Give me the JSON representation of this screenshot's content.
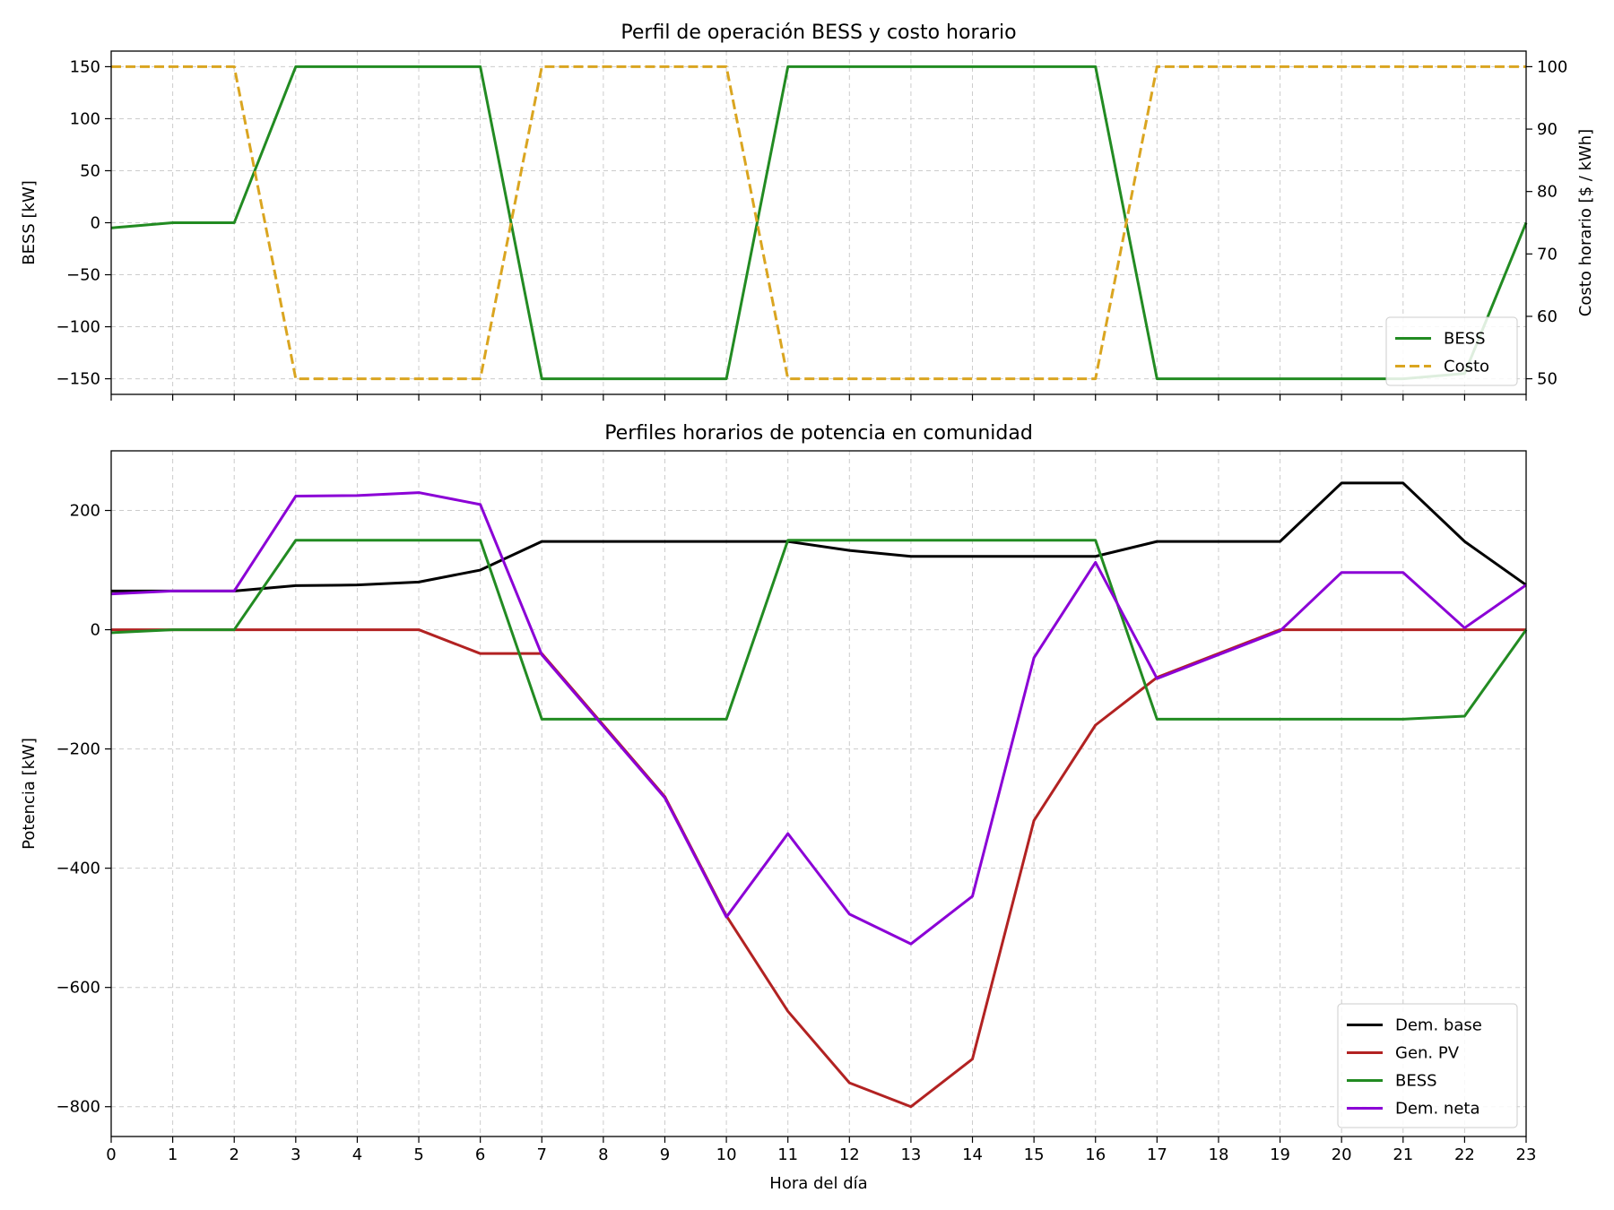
{
  "chart_data": [
    {
      "type": "line",
      "title": "Perfil de operación BESS y costo horario",
      "xlabel": "",
      "ylabel": "BESS [kW]",
      "y2label": "Costo horario [$ / kWh]",
      "x": [
        0,
        1,
        2,
        3,
        4,
        5,
        6,
        7,
        8,
        9,
        10,
        11,
        12,
        13,
        14,
        15,
        16,
        17,
        18,
        19,
        20,
        21,
        22,
        23
      ],
      "xlim": [
        0,
        23
      ],
      "ylim": [
        -165,
        165
      ],
      "yticks": [
        150,
        100,
        50,
        0,
        -50,
        -100,
        -150
      ],
      "y2lim": [
        47.5,
        102.5
      ],
      "y2ticks": [
        100,
        90,
        80,
        70,
        60,
        50
      ],
      "grid": true,
      "legend_position": "lower-right",
      "series": [
        {
          "name": "BESS",
          "axis": "left",
          "color": "#228b22",
          "style": "solid",
          "values": [
            -5,
            0,
            0,
            150,
            150,
            150,
            150,
            -150,
            -150,
            -150,
            -150,
            150,
            150,
            150,
            150,
            150,
            150,
            -150,
            -150,
            -150,
            -150,
            -150,
            -145,
            0
          ]
        },
        {
          "name": "Costo",
          "axis": "right",
          "color": "#daa520",
          "style": "dashed",
          "values": [
            100,
            100,
            100,
            50,
            50,
            50,
            50,
            100,
            100,
            100,
            100,
            50,
            50,
            50,
            50,
            50,
            50,
            100,
            100,
            100,
            100,
            100,
            100,
            100
          ]
        }
      ]
    },
    {
      "type": "line",
      "title": "Perfiles horarios de potencia en comunidad",
      "xlabel": "Hora del día",
      "ylabel": "Potencia [kW]",
      "x": [
        0,
        1,
        2,
        3,
        4,
        5,
        6,
        7,
        8,
        9,
        10,
        11,
        12,
        13,
        14,
        15,
        16,
        17,
        18,
        19,
        20,
        21,
        22,
        23
      ],
      "xlim": [
        0,
        23
      ],
      "ylim": [
        -850,
        300
      ],
      "yticks": [
        200,
        0,
        -200,
        -400,
        -600,
        -800
      ],
      "grid": true,
      "legend_position": "lower-right",
      "series": [
        {
          "name": "Dem. base",
          "color": "#000000",
          "values": [
            65,
            65,
            65,
            74,
            75,
            80,
            100,
            148,
            148,
            148,
            148,
            148,
            133,
            123,
            123,
            123,
            123,
            148,
            148,
            148,
            246,
            246,
            148,
            75
          ]
        },
        {
          "name": "Gen. PV",
          "color": "#b22222",
          "values": [
            0,
            0,
            0,
            0,
            0,
            0,
            -40,
            -40,
            -160,
            -280,
            -480,
            -640,
            -760,
            -800,
            -720,
            -320,
            -160,
            -80,
            -40,
            0,
            0,
            0,
            0,
            0
          ]
        },
        {
          "name": "BESS",
          "color": "#228b22",
          "values": [
            -5,
            0,
            0,
            150,
            150,
            150,
            150,
            -150,
            -150,
            -150,
            -150,
            150,
            150,
            150,
            150,
            150,
            150,
            -150,
            -150,
            -150,
            -150,
            -150,
            -145,
            0
          ]
        },
        {
          "name": "Dem. neta",
          "color": "#8b00d6",
          "values": [
            60,
            65,
            65,
            224,
            225,
            230,
            210,
            -42,
            -162,
            -282,
            -482,
            -342,
            -477,
            -527,
            -447,
            -47,
            113,
            -82,
            -42,
            -2,
            96,
            96,
            3,
            75
          ]
        }
      ]
    }
  ]
}
